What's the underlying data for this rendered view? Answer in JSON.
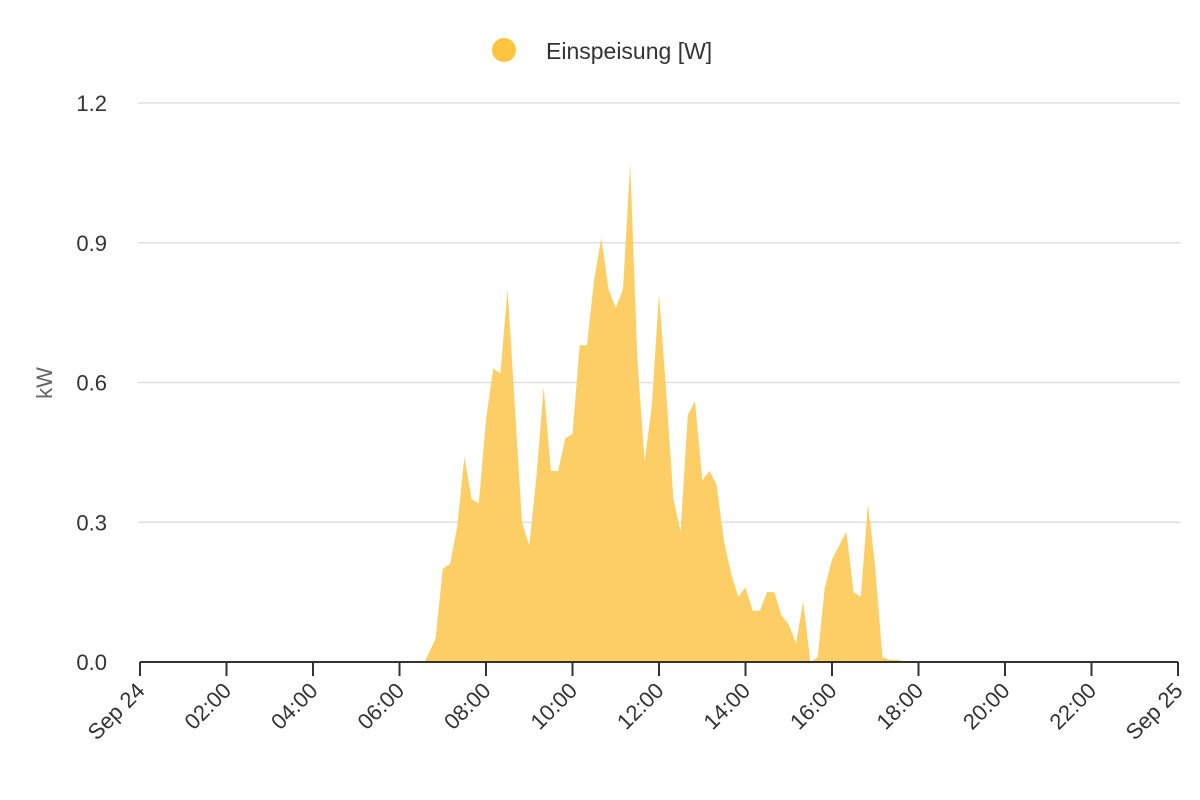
{
  "chart_data": {
    "type": "area",
    "title": "",
    "xlabel": "",
    "ylabel": "kW",
    "ylim": [
      0,
      1.2
    ],
    "xlim": [
      "Sep 24 00:00",
      "Sep 25 00:00"
    ],
    "yticks": [
      "0.0",
      "0.3",
      "0.6",
      "0.9",
      "1.2"
    ],
    "xticks": [
      "Sep 24",
      "02:00",
      "04:00",
      "06:00",
      "08:00",
      "10:00",
      "12:00",
      "14:00",
      "16:00",
      "18:00",
      "20:00",
      "22:00",
      "Sep 25"
    ],
    "grid": true,
    "legend_position": "top-center",
    "colors": {
      "series": "#FFC53D",
      "fill": "#FDCE66",
      "grid": "#E0E0E0",
      "axis": "#333333"
    },
    "series": [
      {
        "name": "Einspeisung [W]",
        "x": [
          "06:35",
          "06:50",
          "07:00",
          "07:10",
          "07:20",
          "07:30",
          "07:40",
          "07:50",
          "08:00",
          "08:10",
          "08:20",
          "08:30",
          "08:40",
          "08:50",
          "09:00",
          "09:10",
          "09:20",
          "09:30",
          "09:40",
          "09:50",
          "10:00",
          "10:10",
          "10:20",
          "10:30",
          "10:40",
          "10:50",
          "11:00",
          "11:10",
          "11:20",
          "11:30",
          "11:40",
          "11:50",
          "12:00",
          "12:10",
          "12:20",
          "12:30",
          "12:40",
          "12:50",
          "13:00",
          "13:10",
          "13:20",
          "13:30",
          "13:40",
          "13:50",
          "14:00",
          "14:10",
          "14:20",
          "14:30",
          "14:40",
          "14:50",
          "15:00",
          "15:10",
          "15:20",
          "15:30",
          "15:40",
          "15:50",
          "16:00",
          "16:10",
          "16:20",
          "16:30",
          "16:40",
          "16:50",
          "17:00",
          "17:10",
          "17:20",
          "17:30",
          "17:45"
        ],
        "values": [
          0,
          0.05,
          0.2,
          0.21,
          0.29,
          0.44,
          0.35,
          0.34,
          0.52,
          0.63,
          0.62,
          0.8,
          0.55,
          0.3,
          0.25,
          0.4,
          0.59,
          0.41,
          0.41,
          0.48,
          0.49,
          0.68,
          0.68,
          0.82,
          0.91,
          0.8,
          0.76,
          0.8,
          1.07,
          0.65,
          0.43,
          0.55,
          0.79,
          0.58,
          0.35,
          0.28,
          0.53,
          0.56,
          0.39,
          0.41,
          0.38,
          0.26,
          0.19,
          0.14,
          0.16,
          0.11,
          0.11,
          0.15,
          0.15,
          0.1,
          0.08,
          0.04,
          0.13,
          0.0,
          0.01,
          0.16,
          0.22,
          0.25,
          0.28,
          0.15,
          0.14,
          0.34,
          0.2,
          0.01,
          0.005,
          0.005,
          0
        ]
      }
    ]
  }
}
